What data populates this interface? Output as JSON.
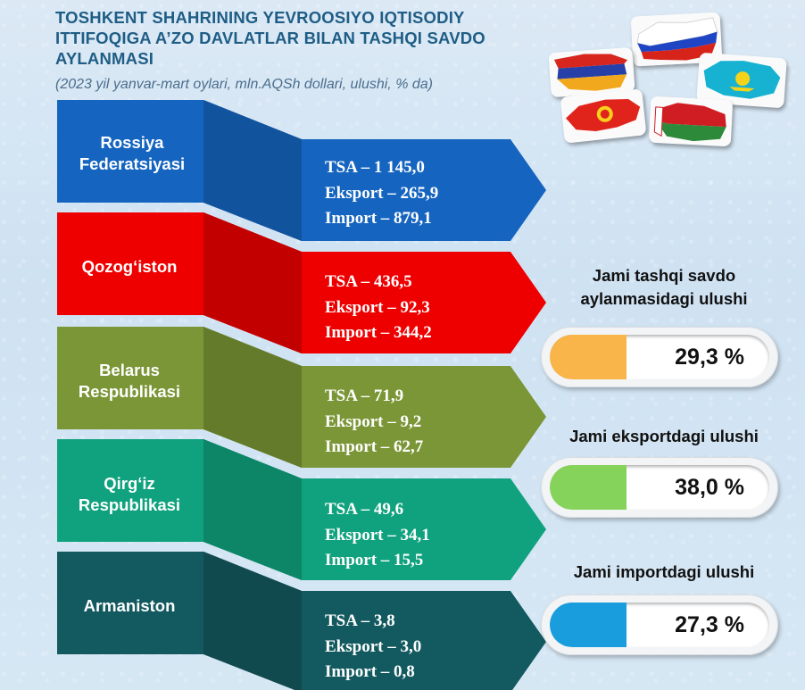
{
  "title": "TOSHKENT SHAHRINING YEVROOSIYO IQTISODIY ITTIFOQIGA  A’ZO DAVLATLAR BILAN TASHQI SAVDO AYLANMASI",
  "subtitle": "(2023 yil yanvar-mart oylari, mln.AQSh dollari, ulushi, % da)",
  "countries": [
    {
      "name": "Rossiya Federatsiyasi",
      "tsa": "TSA – 1 145,0",
      "eksport": "Eksport – 265,9",
      "import": "Import – 879,1",
      "color": "#1565c0"
    },
    {
      "name": "Qozog‘iston",
      "tsa": "TSA – 436,5",
      "eksport": "Eksport – 92,3",
      "import": "Import – 344,2",
      "color": "#ee0000"
    },
    {
      "name": "Belarus Respublikasi",
      "tsa": "TSA – 71,9",
      "eksport": "Eksport – 9,2",
      "import": "Import – 62,7",
      "color": "#7b9636"
    },
    {
      "name": "Qirg‘iz Respublikasi",
      "tsa": "TSA – 49,6",
      "eksport": "Eksport – 34,1",
      "import": "Import – 15,5",
      "color": "#10a27e"
    },
    {
      "name": "Armaniston",
      "tsa": "TSA – 3,8",
      "eksport": "Eksport – 3,0",
      "import": "Import – 0,8",
      "color": "#135a60"
    }
  ],
  "shares": [
    {
      "label": "Jami tashqi savdo aylanmasidagi ulushi",
      "value": "29,3 %",
      "color": "#f9b44a"
    },
    {
      "label": "Jami eksportdagi ulushi",
      "value": "38,0 %",
      "color": "#86d35c"
    },
    {
      "label": "Jami importdagi ulushi",
      "value": "27,3 %",
      "color": "#199ddc"
    }
  ],
  "flag_icons": [
    "russia-flag-icon",
    "armenia-flag-icon",
    "kazakhstan-flag-icon",
    "kyrgyzstan-flag-icon",
    "belarus-flag-icon"
  ]
}
